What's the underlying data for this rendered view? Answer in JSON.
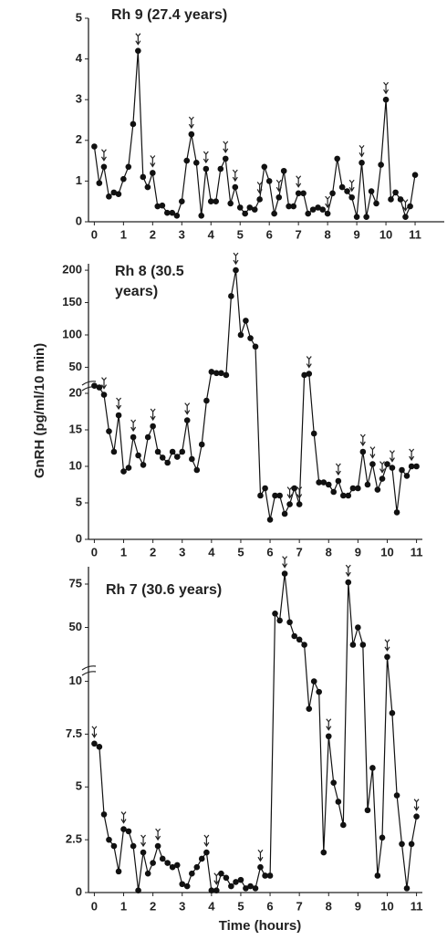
{
  "chart_data": [
    {
      "type": "line",
      "title": "Rh 9 (27.4 years)",
      "x": [
        0,
        0.17,
        0.33,
        0.5,
        0.67,
        0.83,
        1,
        1.17,
        1.33,
        1.5,
        1.67,
        1.83,
        2,
        2.17,
        2.33,
        2.5,
        2.67,
        2.83,
        3,
        3.17,
        3.33,
        3.5,
        3.67,
        3.83,
        4,
        4.17,
        4.33,
        4.5,
        4.67,
        4.83,
        5,
        5.17,
        5.33,
        5.5,
        5.67,
        5.83,
        6,
        6.17,
        6.33,
        6.5,
        6.67,
        6.83,
        7,
        7.17,
        7.33,
        7.5,
        7.67,
        7.83,
        8,
        8.17,
        8.33,
        8.5,
        8.67,
        8.83,
        9,
        9.17,
        9.33,
        9.5,
        9.67,
        9.83,
        10,
        10.17,
        10.33,
        10.5,
        10.67,
        10.83,
        11
      ],
      "values": [
        1.85,
        0.95,
        1.35,
        0.62,
        0.72,
        0.68,
        1.05,
        1.35,
        2.4,
        4.2,
        1.1,
        0.85,
        1.2,
        0.38,
        0.4,
        0.22,
        0.22,
        0.15,
        0.5,
        1.5,
        2.15,
        1.45,
        0.15,
        1.3,
        0.5,
        0.5,
        1.3,
        1.55,
        0.45,
        0.85,
        0.35,
        0.2,
        0.35,
        0.3,
        0.55,
        1.35,
        1.0,
        0.2,
        0.6,
        1.25,
        0.38,
        0.38,
        0.7,
        0.7,
        0.2,
        0.3,
        0.35,
        0.3,
        0.2,
        0.7,
        1.55,
        0.85,
        0.75,
        0.6,
        0.12,
        1.45,
        0.12,
        0.75,
        0.45,
        1.4,
        3.0,
        0.55,
        0.72,
        0.55,
        0.12,
        0.38,
        1.15
      ],
      "pulses": [
        0.33,
        1.5,
        2.0,
        3.33,
        3.83,
        4.5,
        4.83,
        5.67,
        6.33,
        7.0,
        8.0,
        8.83,
        9.17,
        10.0,
        10.67
      ],
      "color": "#111111",
      "xlim": [
        -0.2,
        12
      ],
      "xticks": [
        0,
        1,
        2,
        3,
        4,
        5,
        6,
        7,
        8,
        9,
        10,
        11
      ],
      "ylim": [
        0,
        5
      ],
      "yticks": [
        0,
        1,
        2,
        3,
        4,
        5
      ]
    },
    {
      "type": "line",
      "title": "Rh 8 (30.5 years)",
      "y_label": "GnRH (pg/ml/10 min)",
      "x": [
        0,
        0.17,
        0.33,
        0.5,
        0.67,
        0.83,
        1,
        1.17,
        1.33,
        1.5,
        1.67,
        1.83,
        2,
        2.17,
        2.33,
        2.5,
        2.67,
        2.83,
        3,
        3.17,
        3.33,
        3.5,
        3.67,
        3.83,
        4,
        4.17,
        4.33,
        4.5,
        4.67,
        4.83,
        5,
        5.17,
        5.33,
        5.5,
        5.67,
        5.83,
        6,
        6.17,
        6.33,
        6.5,
        6.67,
        6.83,
        7,
        7.17,
        7.33,
        7.5,
        7.67,
        7.83,
        8,
        8.17,
        8.33,
        8.5,
        8.67,
        8.83,
        9,
        9.17,
        9.33,
        9.5,
        9.67,
        9.83,
        10,
        10.17,
        10.33,
        10.5,
        10.67,
        10.83,
        11
      ],
      "values": [
        21.5,
        20.8,
        19.8,
        14.8,
        12,
        17,
        9.3,
        9.8,
        14,
        11.5,
        10.2,
        14,
        15.5,
        12,
        11.2,
        10.5,
        12,
        11.3,
        12,
        16.3,
        11,
        9.5,
        13,
        19,
        43,
        41,
        41,
        38,
        160,
        200,
        100,
        122,
        95,
        82,
        6,
        7,
        2.7,
        6,
        6,
        3.5,
        4.8,
        7,
        4.8,
        38,
        40,
        14.5,
        7.8,
        7.8,
        7.5,
        6.5,
        8,
        6,
        6,
        7,
        7,
        12,
        7.5,
        10.3,
        6.8,
        8.3,
        10.3,
        9.8,
        3.7,
        9.5,
        8.7,
        10,
        10
      ],
      "pulses": [
        0.33,
        0.83,
        1.33,
        2.0,
        3.17,
        4.83,
        6.67,
        7.0,
        7.33,
        8.33,
        9.17,
        9.5,
        9.83,
        10.17,
        10.83
      ],
      "color": "#111111",
      "xlim": [
        -0.2,
        11.2
      ],
      "xticks": [
        0,
        1,
        2,
        3,
        4,
        5,
        6,
        7,
        8,
        9,
        10,
        11
      ],
      "y_segments": [
        {
          "ylim": [
            0,
            21
          ],
          "yticks": [
            0,
            5,
            10,
            15,
            20
          ]
        },
        {
          "ylim": [
            21,
            210
          ],
          "yticks": [
            50,
            100,
            150,
            200
          ]
        }
      ]
    },
    {
      "type": "line",
      "title": "Rh 7 (30.6 years)",
      "x_label": "Time (hours)",
      "x": [
        0,
        0.17,
        0.33,
        0.5,
        0.67,
        0.83,
        1,
        1.17,
        1.33,
        1.5,
        1.67,
        1.83,
        2,
        2.17,
        2.33,
        2.5,
        2.67,
        2.83,
        3,
        3.17,
        3.33,
        3.5,
        3.67,
        3.83,
        4,
        4.17,
        4.33,
        4.5,
        4.67,
        4.83,
        5,
        5.17,
        5.33,
        5.5,
        5.67,
        5.83,
        6,
        6.17,
        6.33,
        6.5,
        6.67,
        6.83,
        7,
        7.17,
        7.33,
        7.5,
        7.67,
        7.83,
        8,
        8.17,
        8.33,
        8.5,
        8.67,
        8.83,
        9,
        9.17,
        9.33,
        9.5,
        9.67,
        9.83,
        10,
        10.17,
        10.33,
        10.5,
        10.67,
        10.83,
        11
      ],
      "values": [
        7.05,
        6.9,
        3.7,
        2.5,
        2.2,
        1.0,
        3.0,
        2.9,
        2.2,
        0.1,
        1.9,
        0.9,
        1.4,
        2.2,
        1.6,
        1.4,
        1.2,
        1.3,
        0.4,
        0.3,
        0.9,
        1.2,
        1.6,
        1.9,
        0.1,
        0.1,
        0.9,
        0.7,
        0.3,
        0.5,
        0.6,
        0.2,
        0.3,
        0.2,
        1.2,
        0.8,
        0.8,
        58,
        54,
        81,
        53,
        45,
        43,
        40,
        8.7,
        10,
        9.5,
        1.9,
        7.4,
        5.2,
        4.3,
        3.2,
        76,
        40,
        50,
        40,
        3.9,
        5.9,
        0.8,
        2.6,
        33,
        8.5,
        4.6,
        2.3,
        0.2,
        2.3,
        3.6
      ],
      "pulses": [
        0.0,
        1.0,
        1.67,
        2.17,
        3.83,
        4.17,
        5.67,
        6.5,
        8.0,
        8.67,
        10.0,
        11.0
      ],
      "color": "#111111",
      "xlim": [
        -0.2,
        11.2
      ],
      "xticks": [
        0,
        1,
        2,
        3,
        4,
        5,
        6,
        7,
        8,
        9,
        10,
        11
      ],
      "y_segments": [
        {
          "ylim": [
            0,
            10.5
          ],
          "yticks": [
            0,
            2.5,
            5,
            7.5,
            10
          ]
        },
        {
          "ylim": [
            25,
            85
          ],
          "yticks": [
            50,
            75
          ]
        }
      ]
    }
  ]
}
